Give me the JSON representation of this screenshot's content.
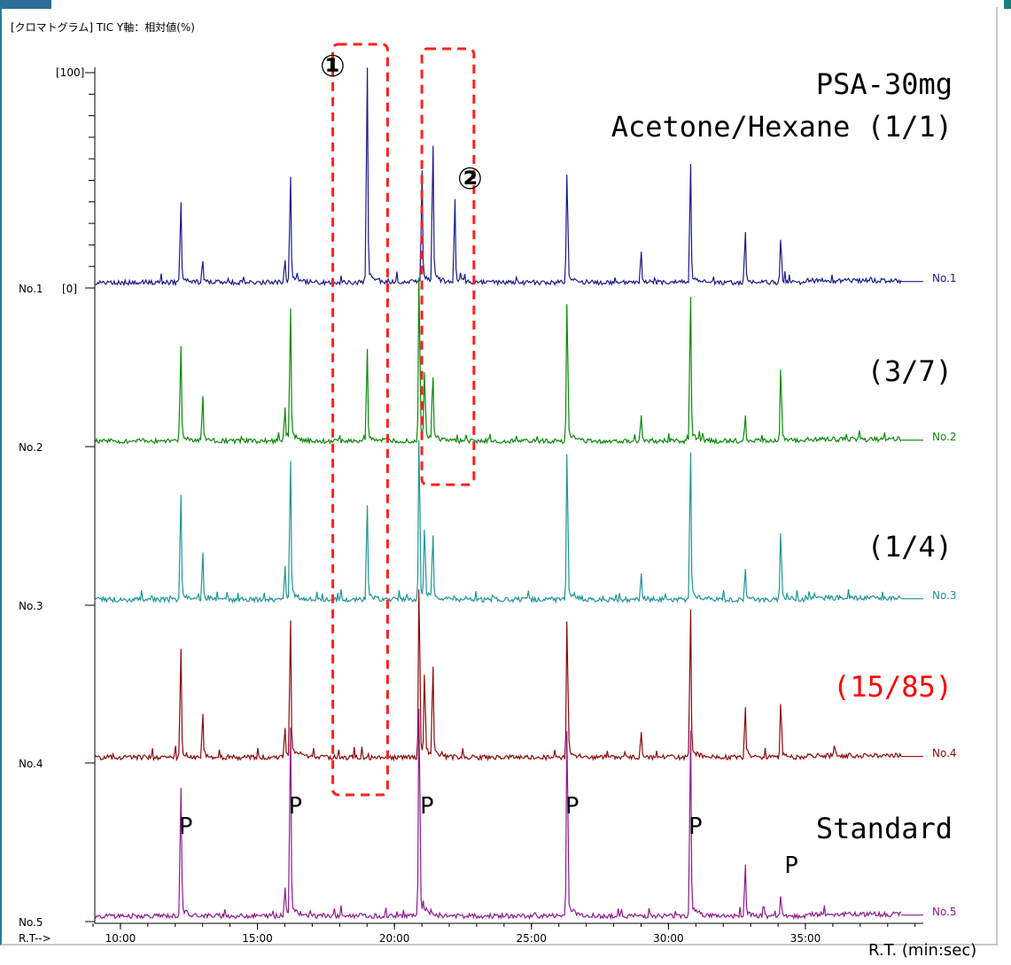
{
  "header": {
    "title": "[クロマトグラム] TIC Y軸：相対値(%)"
  },
  "annotations": {
    "title_line1": "PSA-30mg",
    "title_line2": "Acetone/Hexane (1/1)",
    "ratio_no2": "(3/7)",
    "ratio_no3": "(1/4)",
    "ratio_no4": "(15/85)",
    "standard": "Standard",
    "region1": "①",
    "region2": "②",
    "peak_marker": "P",
    "x_units": "R.T. (min:sec)"
  },
  "colors": {
    "No.1": "#1a1a8c",
    "No.2": "#0a8a0a",
    "No.3": "#1e9696",
    "No.4": "#8b0a0a",
    "No.5": "#8e1a8e",
    "highlight_box": "#ff2020",
    "ratio_highlight": "#ff0000"
  },
  "chart_data": {
    "type": "line",
    "title": "[クロマトグラム] TIC Y軸：相対値(%)",
    "xlabel": "R.T. (min:sec)",
    "x_axis_prefix": "R.T-->",
    "ylabel": "",
    "x_ticks": [
      "10:00",
      "15:00",
      "20:00",
      "25:00",
      "30:00",
      "35:00"
    ],
    "y_tick_top": "[100]",
    "y_tick_bottom": "[0]",
    "xlim": [
      9.0,
      39.3
    ],
    "ylim": [
      0,
      100
    ],
    "grid": false,
    "highlight_regions": [
      {
        "label": "①",
        "x_range": [
          17.75,
          19.75
        ]
      },
      {
        "label": "②",
        "x_range": [
          21.0,
          22.9
        ]
      }
    ],
    "peak_markers_x": [
      12.2,
      16.2,
      21.0,
      26.3,
      30.8,
      34.3
    ],
    "series": [
      {
        "name": "No.1",
        "baseline": 1.5,
        "peaks": [
          [
            12.2,
            37
          ],
          [
            13.0,
            11
          ],
          [
            16.0,
            10
          ],
          [
            16.2,
            50
          ],
          [
            19.0,
            100
          ],
          [
            21.0,
            52
          ],
          [
            21.4,
            63
          ],
          [
            22.2,
            38
          ],
          [
            26.3,
            55
          ],
          [
            29.0,
            14
          ],
          [
            30.8,
            56
          ],
          [
            32.8,
            23
          ],
          [
            34.1,
            22
          ]
        ]
      },
      {
        "name": "No.2",
        "baseline": 1.5,
        "peaks": [
          [
            12.2,
            44
          ],
          [
            13.0,
            21
          ],
          [
            16.0,
            15
          ],
          [
            16.2,
            61
          ],
          [
            19.0,
            43
          ],
          [
            20.9,
            79
          ],
          [
            21.1,
            31
          ],
          [
            21.4,
            29
          ],
          [
            26.3,
            70
          ],
          [
            29.0,
            12
          ],
          [
            30.8,
            68
          ],
          [
            32.8,
            11
          ],
          [
            34.1,
            36
          ]
        ]
      },
      {
        "name": "No.3",
        "baseline": 1.5,
        "peaks": [
          [
            12.2,
            50
          ],
          [
            13.0,
            23
          ],
          [
            16.0,
            15
          ],
          [
            16.2,
            65
          ],
          [
            19.0,
            44
          ],
          [
            20.9,
            80
          ],
          [
            21.1,
            33
          ],
          [
            21.4,
            30
          ],
          [
            26.3,
            74
          ],
          [
            29.0,
            13
          ],
          [
            30.8,
            70
          ],
          [
            32.8,
            15
          ],
          [
            34.1,
            34
          ]
        ]
      },
      {
        "name": "No.4",
        "baseline": 1.5,
        "peaks": [
          [
            12.2,
            50
          ],
          [
            13.0,
            21
          ],
          [
            16.0,
            14
          ],
          [
            16.2,
            65
          ],
          [
            20.9,
            84
          ],
          [
            21.1,
            38
          ],
          [
            21.4,
            42
          ],
          [
            26.3,
            69
          ],
          [
            29.0,
            13
          ],
          [
            30.8,
            69
          ],
          [
            32.8,
            24
          ],
          [
            34.1,
            27
          ]
        ]
      },
      {
        "name": "No.5",
        "baseline": 1.5,
        "peaks": [
          [
            12.2,
            61
          ],
          [
            16.0,
            13
          ],
          [
            16.2,
            88
          ],
          [
            20.9,
            105
          ],
          [
            26.3,
            93
          ],
          [
            30.8,
            86
          ],
          [
            32.8,
            24
          ],
          [
            34.1,
            9
          ]
        ]
      }
    ]
  }
}
